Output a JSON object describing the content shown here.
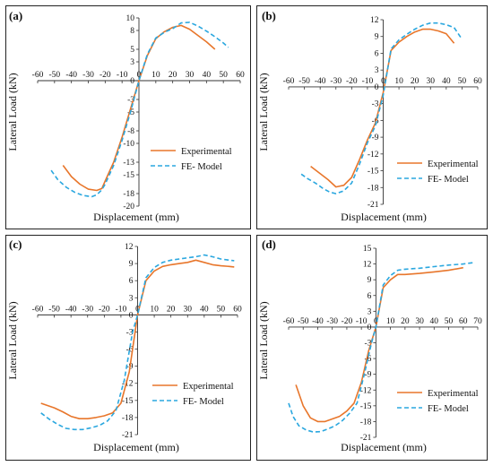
{
  "chart_data": [
    {
      "type": "line",
      "panel_label": "(a)",
      "xlabel": "Displacement (mm)",
      "ylabel": "Lateral Load (kN)",
      "xlim": [
        -60,
        60
      ],
      "ylim": [
        -20,
        10
      ],
      "xticks": [
        -60,
        -50,
        -40,
        -30,
        -20,
        -10,
        0,
        10,
        20,
        30,
        40,
        50,
        60
      ],
      "yticks": [
        -20,
        -18,
        -15,
        -13,
        -10,
        -8,
        -5,
        -3,
        0,
        3,
        5,
        8,
        10
      ],
      "ytick_labels": [
        "-20",
        "-18",
        "-15",
        "-13",
        "-10",
        "-8",
        "-5",
        "-3",
        "0",
        "3",
        "5",
        "8",
        "10"
      ],
      "series": [
        {
          "name": "Experimental",
          "color": "#e8762b",
          "style": "solid",
          "x": [
            -45,
            -40,
            -35,
            -30,
            -25,
            -22,
            -20,
            -15,
            -10,
            -5,
            0,
            5,
            10,
            15,
            20,
            25,
            30,
            35,
            40,
            45
          ],
          "y": [
            -13.5,
            -15.3,
            -16.5,
            -17.3,
            -17.5,
            -17.2,
            -16,
            -13,
            -9,
            -4.5,
            0,
            4,
            6.7,
            7.8,
            8.5,
            8.8,
            8.2,
            7.2,
            6.2,
            5
          ]
        },
        {
          "name": "FE- Model",
          "color": "#2aa7df",
          "style": "dashed",
          "x": [
            -52,
            -48,
            -43,
            -38,
            -33,
            -28,
            -25,
            -22,
            -20,
            -15,
            -10,
            -5,
            0,
            5,
            10,
            15,
            20,
            25,
            30,
            35,
            40,
            45,
            50,
            53
          ],
          "y": [
            -14.3,
            -15.8,
            -17,
            -17.8,
            -18.3,
            -18.5,
            -18.2,
            -17.4,
            -16.5,
            -13.5,
            -9.5,
            -5,
            0,
            4.2,
            6.8,
            7.7,
            8.3,
            9.2,
            9.3,
            8.7,
            7.9,
            7,
            6,
            5.3
          ]
        }
      ]
    },
    {
      "type": "line",
      "panel_label": "(b)",
      "xlabel": "Displacement (mm)",
      "ylabel": "Lateral Load (kN)",
      "xlim": [
        -60,
        60
      ],
      "ylim": [
        -21,
        12
      ],
      "xticks": [
        -60,
        -50,
        -40,
        -30,
        -20,
        -10,
        0,
        10,
        20,
        30,
        40,
        50,
        60
      ],
      "yticks": [
        -21,
        -18,
        -15,
        -12,
        -9,
        -6,
        -3,
        0,
        3,
        6,
        9,
        12
      ],
      "ytick_labels": [
        "-21",
        "-18",
        "-15",
        "-12",
        "-9",
        "-6",
        "-3",
        "0",
        "3",
        "6",
        "9",
        "12"
      ],
      "series": [
        {
          "name": "Experimental",
          "color": "#e8762b",
          "style": "solid",
          "x": [
            -46,
            -40,
            -35,
            -30,
            -25,
            -20,
            -15,
            -10,
            -5,
            0,
            5,
            10,
            15,
            20,
            25,
            30,
            35,
            40,
            45
          ],
          "y": [
            -14.2,
            -15.5,
            -16.6,
            -17.9,
            -17.6,
            -16.2,
            -13,
            -9.5,
            -6.5,
            -1,
            6.5,
            8,
            9,
            9.8,
            10.3,
            10.3,
            10,
            9.5,
            7.8
          ]
        },
        {
          "name": "FE- Model",
          "color": "#2aa7df",
          "style": "dashed",
          "x": [
            -52,
            -48,
            -43,
            -38,
            -34,
            -30,
            -25,
            -20,
            -15,
            -10,
            -5,
            0,
            5,
            10,
            15,
            20,
            25,
            30,
            35,
            40,
            45,
            50
          ],
          "y": [
            -15.6,
            -16.4,
            -17.2,
            -18.2,
            -18.8,
            -19.1,
            -18.6,
            -17.2,
            -13.8,
            -10,
            -7,
            -1.5,
            6.8,
            8.4,
            9.4,
            10.3,
            11,
            11.4,
            11.4,
            11.1,
            10.6,
            8.5
          ]
        }
      ]
    },
    {
      "type": "line",
      "panel_label": "(c)",
      "xlabel": "Displacement (mm)",
      "ylabel": "Lateral Load (kN)",
      "xlim": [
        -60,
        60
      ],
      "ylim": [
        -21,
        12
      ],
      "xticks": [
        -60,
        -50,
        -40,
        -30,
        -20,
        -10,
        0,
        10,
        20,
        30,
        40,
        50,
        60
      ],
      "yticks": [
        -21,
        -18,
        -15,
        -12,
        -9,
        -6,
        -3,
        0,
        3,
        6,
        9,
        12
      ],
      "ytick_labels": [
        "-21",
        "-18",
        "-15",
        "-12",
        "-9",
        "-6",
        "-3",
        "0",
        "3",
        "6",
        "9",
        "12"
      ],
      "series": [
        {
          "name": "Experimental",
          "color": "#e8762b",
          "style": "solid",
          "x": [
            -58,
            -50,
            -45,
            -40,
            -35,
            -30,
            -25,
            -20,
            -15,
            -10,
            -5,
            0,
            5,
            10,
            15,
            20,
            25,
            30,
            35,
            40,
            45,
            50,
            55,
            58
          ],
          "y": [
            -15.5,
            -16.3,
            -17,
            -17.8,
            -18.2,
            -18.2,
            -18,
            -17.7,
            -17.2,
            -15.5,
            -10,
            0,
            6,
            7.7,
            8.5,
            8.8,
            9,
            9.2,
            9.6,
            9.2,
            8.8,
            8.6,
            8.5,
            8.4
          ]
        },
        {
          "name": "FE- Model",
          "color": "#2aa7df",
          "style": "dashed",
          "x": [
            -58,
            -53,
            -48,
            -43,
            -38,
            -33,
            -28,
            -23,
            -18,
            -13,
            -8,
            -3,
            0,
            5,
            10,
            15,
            20,
            25,
            30,
            35,
            40,
            45,
            50,
            55,
            58
          ],
          "y": [
            -17.2,
            -18.3,
            -19.2,
            -19.9,
            -20.1,
            -20.1,
            -19.8,
            -19.4,
            -18.6,
            -16.8,
            -11.5,
            -3,
            0,
            6.5,
            8.3,
            9.2,
            9.6,
            9.8,
            10,
            10.2,
            10.5,
            10.2,
            9.8,
            9.6,
            9.5
          ]
        }
      ]
    },
    {
      "type": "line",
      "panel_label": "(d)",
      "xlabel": "Displacement (mm)",
      "ylabel": "Lateral Load (kN)",
      "xlim": [
        -60,
        70
      ],
      "ylim": [
        -21,
        15
      ],
      "xticks": [
        -60,
        -50,
        -40,
        -30,
        -20,
        -10,
        0,
        10,
        20,
        30,
        40,
        50,
        60,
        70
      ],
      "yticks": [
        -21,
        -18,
        -15,
        -12,
        -9,
        -6,
        -3,
        0,
        3,
        6,
        9,
        12,
        15
      ],
      "ytick_labels": [
        "-21",
        "-18",
        "-15",
        "-12",
        "-9",
        "-6",
        "-3",
        "0",
        "3",
        "6",
        "9",
        "12",
        "15"
      ],
      "series": [
        {
          "name": "Experimental",
          "color": "#e8762b",
          "style": "solid",
          "x": [
            -55,
            -50,
            -45,
            -40,
            -35,
            -30,
            -25,
            -20,
            -15,
            -10,
            -5,
            0,
            5,
            10,
            15,
            20,
            30,
            40,
            50,
            60
          ],
          "y": [
            -11,
            -15,
            -17.3,
            -18,
            -18,
            -17.5,
            -17,
            -16,
            -14.5,
            -10.5,
            -4.5,
            0,
            7.5,
            9,
            10,
            10,
            10.2,
            10.5,
            10.8,
            11.3
          ]
        },
        {
          "name": "FE- Model",
          "color": "#2aa7df",
          "style": "dashed",
          "x": [
            -60,
            -57,
            -53,
            -48,
            -43,
            -38,
            -33,
            -28,
            -23,
            -18,
            -13,
            -8,
            -3,
            0,
            5,
            10,
            15,
            20,
            30,
            40,
            50,
            60,
            68
          ],
          "y": [
            -14.5,
            -17,
            -18.8,
            -19.6,
            -20,
            -19.9,
            -19.4,
            -18.8,
            -17.8,
            -16.4,
            -14.5,
            -9,
            -3,
            0,
            8,
            9.8,
            10.8,
            11,
            11.2,
            11.5,
            11.8,
            12,
            12.3
          ]
        }
      ]
    }
  ]
}
